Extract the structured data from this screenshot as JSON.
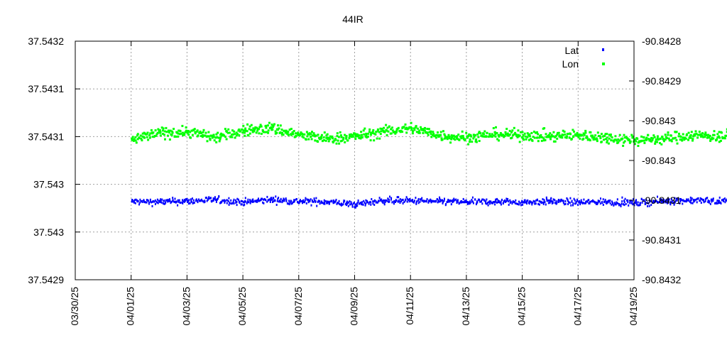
{
  "chart_data": {
    "type": "scatter",
    "title": "44IR",
    "xlabel": "",
    "ylabel": "",
    "y2label": "",
    "grid": true,
    "legend_position": "top-right",
    "x_ticks": [
      "03/30/25",
      "04/01/25",
      "04/03/25",
      "04/05/25",
      "04/07/25",
      "04/09/25",
      "04/11/25",
      "04/13/25",
      "04/15/25",
      "04/17/25",
      "04/19/25"
    ],
    "y_ticks": [
      "37.5432",
      "37.5431",
      "37.5431",
      "37.543",
      "37.543",
      "37.5429"
    ],
    "y2_ticks": [
      "-90.8428",
      "-90.8429",
      "-90.843",
      "-90.843",
      "-90.8431",
      "-90.8431",
      "-90.8432"
    ],
    "xlim": [
      "03/30/25",
      "04/19/25"
    ],
    "ylim": [
      37.5429,
      37.5432
    ],
    "y2lim": [
      -90.8432,
      -90.8428
    ],
    "series": [
      {
        "name": "Lat",
        "axis": "left",
        "color": "#0000ff",
        "marker": "small-square",
        "x_days": [
          1.0,
          1.5,
          2.0,
          2.5,
          3.0,
          3.5,
          4.0,
          4.5,
          5.0,
          5.5,
          6.0,
          6.5,
          7.0,
          7.5,
          8.0,
          8.5,
          9.0,
          9.5,
          10.0,
          10.5,
          11.0,
          11.5,
          12.0,
          12.5,
          13.0,
          13.5,
          14.0,
          14.5,
          15.0,
          15.5,
          16.0,
          16.5,
          17.0,
          17.5,
          17.9
        ],
        "y": [
          37.5429996,
          37.5429992,
          37.5430002,
          37.5430018,
          37.5429988,
          37.543002,
          37.5429998,
          37.5429994,
          37.542996,
          37.543001,
          37.5430006,
          37.5429996,
          37.542999,
          37.5429994,
          37.5429988,
          37.543,
          37.5429986,
          37.5429994,
          37.542998,
          37.5430002,
          37.5430014,
          37.543,
          37.5430006,
          37.542998,
          37.5429984,
          37.5429996,
          37.542999,
          37.5429994,
          37.5429998,
          37.543001,
          37.5430002,
          37.543001,
          37.5430046,
          37.5429996,
          37.542999
        ]
      },
      {
        "name": "Lon",
        "axis": "right",
        "color": "#00ff00",
        "marker": "small-square",
        "x_days": [
          1.0,
          1.5,
          2.0,
          2.5,
          3.0,
          3.5,
          4.0,
          4.5,
          5.0,
          5.5,
          6.0,
          6.5,
          7.0,
          7.5,
          8.0,
          8.5,
          9.0,
          9.5,
          10.0,
          10.5,
          11.0,
          11.5,
          12.0,
          12.5,
          13.0,
          13.5,
          14.0,
          14.5,
          15.0,
          15.5,
          16.0,
          16.5,
          17.0,
          17.5,
          17.9
        ],
        "y": [
          -90.842964,
          -90.842952,
          -90.84295,
          -90.84296,
          -90.842948,
          -90.842944,
          -90.842956,
          -90.842962,
          -90.842958,
          -90.84295,
          -90.842944,
          -90.842956,
          -90.84296,
          -90.842954,
          -90.842956,
          -90.842958,
          -90.842956,
          -90.84296,
          -90.842964,
          -90.842962,
          -90.842956,
          -90.842958,
          -90.842952,
          -90.842954,
          -90.842962,
          -90.84296,
          -90.842958,
          -90.842956,
          -90.842964,
          -90.842956,
          -90.84295,
          -90.842954,
          -90.842978,
          -90.842958,
          -90.84296
        ]
      }
    ]
  }
}
